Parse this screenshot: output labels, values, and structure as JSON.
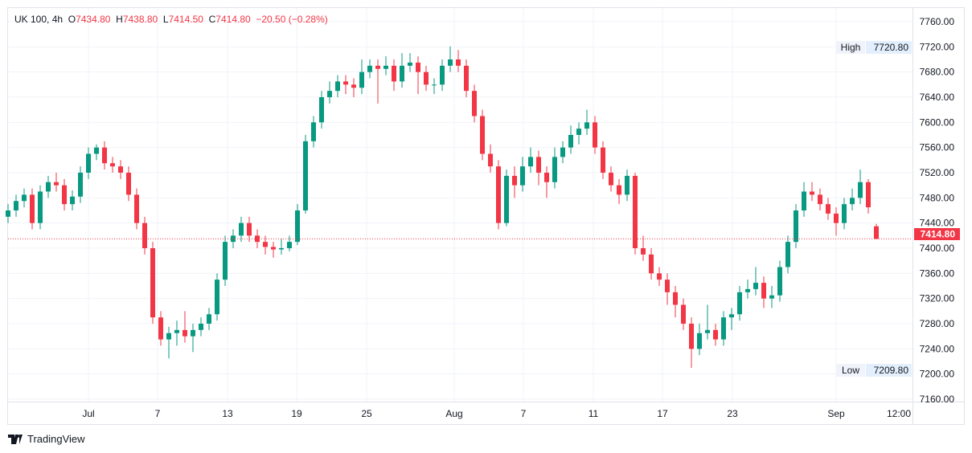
{
  "chart_data": {
    "type": "candlestick",
    "symbol": "UK 100",
    "interval": "4h",
    "ohlc_legend": {
      "o_label": "O",
      "o": "7434.80",
      "h_label": "H",
      "h": "7438.80",
      "l_label": "L",
      "l": "7414.50",
      "c_label": "C",
      "c": "7414.80",
      "change": "−20.50 (−0.28%)"
    },
    "ylim": [
      7160,
      7760
    ],
    "y_ticks": [
      "7160.00",
      "7200.00",
      "7240.00",
      "7280.00",
      "7320.00",
      "7360.00",
      "7400.00",
      "7440.00",
      "7480.00",
      "7520.00",
      "7560.00",
      "7600.00",
      "7640.00",
      "7680.00",
      "7720.00",
      "7760.00"
    ],
    "x_ticks": [
      "Jul",
      "7",
      "13",
      "19",
      "25",
      "Aug",
      "7",
      "11",
      "17",
      "23",
      "Sep",
      "12:00"
    ],
    "last_price": "7414.80",
    "high_label": "High",
    "high_value": "7720.80",
    "low_label": "Low",
    "low_value": "7209.80",
    "colors": {
      "up": "#089981",
      "down": "#f23645",
      "grid": "#f0f3fa"
    },
    "candles": [
      [
        7450,
        7470,
        7440,
        7460
      ],
      [
        7460,
        7485,
        7450,
        7475
      ],
      [
        7475,
        7495,
        7465,
        7485
      ],
      [
        7485,
        7495,
        7430,
        7440
      ],
      [
        7440,
        7500,
        7430,
        7490
      ],
      [
        7490,
        7515,
        7480,
        7505
      ],
      [
        7505,
        7520,
        7490,
        7500
      ],
      [
        7500,
        7510,
        7460,
        7470
      ],
      [
        7470,
        7492,
        7460,
        7482
      ],
      [
        7482,
        7530,
        7472,
        7520
      ],
      [
        7520,
        7560,
        7510,
        7550
      ],
      [
        7550,
        7565,
        7540,
        7560
      ],
      [
        7560,
        7570,
        7525,
        7535
      ],
      [
        7535,
        7545,
        7520,
        7530
      ],
      [
        7530,
        7540,
        7510,
        7520
      ],
      [
        7520,
        7530,
        7475,
        7485
      ],
      [
        7485,
        7495,
        7430,
        7440
      ],
      [
        7440,
        7450,
        7390,
        7400
      ],
      [
        7400,
        7410,
        7280,
        7290
      ],
      [
        7290,
        7300,
        7245,
        7255
      ],
      [
        7255,
        7275,
        7225,
        7265
      ],
      [
        7265,
        7285,
        7245,
        7270
      ],
      [
        7270,
        7300,
        7250,
        7260
      ],
      [
        7260,
        7280,
        7235,
        7270
      ],
      [
        7270,
        7290,
        7260,
        7280
      ],
      [
        7280,
        7305,
        7270,
        7295
      ],
      [
        7295,
        7360,
        7285,
        7350
      ],
      [
        7350,
        7420,
        7340,
        7410
      ],
      [
        7410,
        7430,
        7400,
        7420
      ],
      [
        7420,
        7450,
        7410,
        7440
      ],
      [
        7440,
        7450,
        7410,
        7420
      ],
      [
        7420,
        7430,
        7400,
        7410
      ],
      [
        7410,
        7420,
        7390,
        7402
      ],
      [
        7402,
        7410,
        7385,
        7398
      ],
      [
        7398,
        7415,
        7390,
        7400
      ],
      [
        7400,
        7420,
        7395,
        7410
      ],
      [
        7410,
        7470,
        7405,
        7460
      ],
      [
        7460,
        7580,
        7455,
        7570
      ],
      [
        7570,
        7610,
        7560,
        7600
      ],
      [
        7600,
        7650,
        7590,
        7640
      ],
      [
        7640,
        7665,
        7630,
        7650
      ],
      [
        7650,
        7675,
        7640,
        7665
      ],
      [
        7665,
        7675,
        7645,
        7660
      ],
      [
        7660,
        7670,
        7640,
        7655
      ],
      [
        7655,
        7700,
        7645,
        7680
      ],
      [
        7680,
        7700,
        7670,
        7690
      ],
      [
        7690,
        7700,
        7630,
        7685
      ],
      [
        7685,
        7705,
        7675,
        7690
      ],
      [
        7690,
        7700,
        7650,
        7665
      ],
      [
        7665,
        7710,
        7655,
        7690
      ],
      [
        7690,
        7710,
        7680,
        7695
      ],
      [
        7695,
        7705,
        7645,
        7680
      ],
      [
        7680,
        7690,
        7650,
        7660
      ],
      [
        7660,
        7670,
        7645,
        7660
      ],
      [
        7660,
        7700,
        7650,
        7690
      ],
      [
        7690,
        7720.8,
        7680,
        7700
      ],
      [
        7700,
        7715,
        7680,
        7690
      ],
      [
        7690,
        7700,
        7640,
        7650
      ],
      [
        7650,
        7660,
        7600,
        7610
      ],
      [
        7610,
        7620,
        7540,
        7550
      ],
      [
        7550,
        7565,
        7520,
        7530
      ],
      [
        7530,
        7540,
        7430,
        7440
      ],
      [
        7440,
        7525,
        7435,
        7515
      ],
      [
        7515,
        7530,
        7480,
        7500
      ],
      [
        7500,
        7545,
        7490,
        7530
      ],
      [
        7530,
        7560,
        7520,
        7545
      ],
      [
        7545,
        7555,
        7500,
        7520
      ],
      [
        7520,
        7530,
        7480,
        7505
      ],
      [
        7505,
        7560,
        7495,
        7545
      ],
      [
        7545,
        7570,
        7535,
        7560
      ],
      [
        7560,
        7595,
        7550,
        7580
      ],
      [
        7580,
        7600,
        7565,
        7590
      ],
      [
        7590,
        7620,
        7580,
        7600
      ],
      [
        7600,
        7610,
        7550,
        7560
      ],
      [
        7560,
        7570,
        7510,
        7520
      ],
      [
        7520,
        7530,
        7490,
        7500
      ],
      [
        7500,
        7510,
        7470,
        7485
      ],
      [
        7485,
        7525,
        7475,
        7515
      ],
      [
        7515,
        7520,
        7390,
        7400
      ],
      [
        7400,
        7420,
        7380,
        7390
      ],
      [
        7390,
        7400,
        7350,
        7360
      ],
      [
        7360,
        7370,
        7340,
        7350
      ],
      [
        7350,
        7360,
        7310,
        7330
      ],
      [
        7330,
        7340,
        7290,
        7310
      ],
      [
        7310,
        7320,
        7270,
        7280
      ],
      [
        7280,
        7290,
        7209.8,
        7240
      ],
      [
        7240,
        7280,
        7230,
        7265
      ],
      [
        7265,
        7310,
        7255,
        7270
      ],
      [
        7270,
        7280,
        7245,
        7255
      ],
      [
        7255,
        7300,
        7245,
        7290
      ],
      [
        7290,
        7305,
        7270,
        7295
      ],
      [
        7295,
        7340,
        7285,
        7330
      ],
      [
        7330,
        7350,
        7320,
        7335
      ],
      [
        7335,
        7370,
        7325,
        7345
      ],
      [
        7345,
        7355,
        7305,
        7320
      ],
      [
        7320,
        7340,
        7305,
        7325
      ],
      [
        7325,
        7380,
        7315,
        7370
      ],
      [
        7370,
        7420,
        7360,
        7410
      ],
      [
        7410,
        7470,
        7400,
        7460
      ],
      [
        7460,
        7505,
        7450,
        7490
      ],
      [
        7490,
        7505,
        7475,
        7485
      ],
      [
        7485,
        7495,
        7460,
        7470
      ],
      [
        7470,
        7480,
        7445,
        7455
      ],
      [
        7455,
        7465,
        7420,
        7440
      ],
      [
        7440,
        7480,
        7430,
        7470
      ],
      [
        7470,
        7495,
        7460,
        7480
      ],
      [
        7480,
        7525,
        7470,
        7505
      ],
      [
        7505,
        7510,
        7455,
        7465
      ],
      [
        7434.8,
        7438.8,
        7414.5,
        7414.8
      ]
    ]
  },
  "branding": {
    "name": "TradingView"
  }
}
